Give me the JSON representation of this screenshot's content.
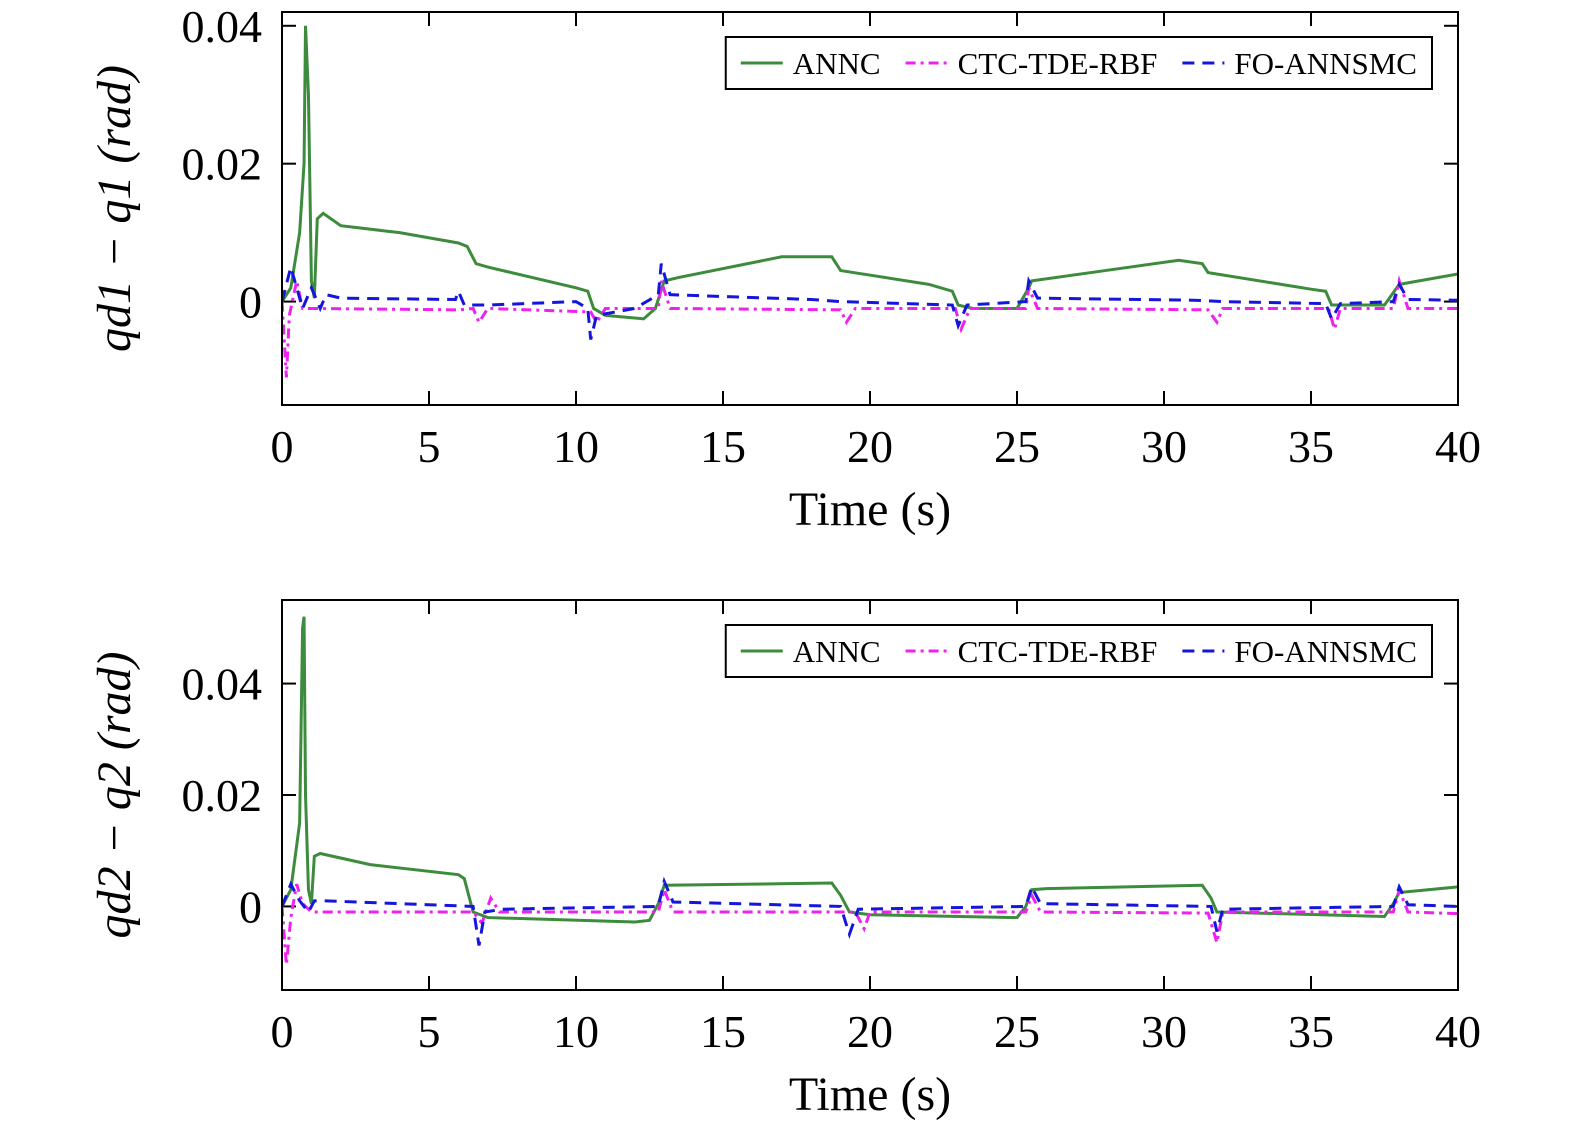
{
  "chart_data": [
    {
      "type": "line",
      "xlabel": "Time (s)",
      "ylabel": "qd1 − q1 (rad)",
      "xlim": [
        0,
        40
      ],
      "xticks": [
        0,
        5,
        10,
        15,
        20,
        25,
        30,
        35,
        40
      ],
      "ylim": [
        -0.015,
        0.042
      ],
      "yticks": [
        0,
        0.02,
        0.04
      ],
      "legend": "upper right",
      "series": [
        {
          "name": "ANNC",
          "color": "#3d8b3d",
          "dash": "solid",
          "x": [
            0,
            0.3,
            0.6,
            0.75,
            0.8,
            0.9,
            1.0,
            1.1,
            1.2,
            1.4,
            2,
            4,
            6,
            6.3,
            6.6,
            7,
            10,
            10.4,
            10.6,
            11,
            12.3,
            12.7,
            13,
            13.5,
            17,
            18.7,
            19,
            22,
            22.8,
            23,
            23.5,
            25,
            25.4,
            25.5,
            28,
            30.5,
            31.3,
            31.5,
            35,
            35.5,
            35.7,
            37.5,
            38,
            40
          ],
          "values": [
            0,
            0.002,
            0.01,
            0.02,
            0.04,
            0.03,
            0.003,
            0.0005,
            0.012,
            0.0128,
            0.011,
            0.01,
            0.0085,
            0.008,
            0.0055,
            0.005,
            0.002,
            0.0015,
            -0.001,
            -0.002,
            -0.0025,
            -0.001,
            0.003,
            0.0035,
            0.0065,
            0.0065,
            0.0045,
            0.0025,
            0.0015,
            -0.0005,
            -0.001,
            -0.001,
            0.002,
            0.003,
            0.0045,
            0.006,
            0.0055,
            0.0042,
            0.0018,
            0.0015,
            -0.0005,
            -0.0005,
            0.0025,
            0.004
          ]
        },
        {
          "name": "CTC-TDE-RBF",
          "color": "#ee22ee",
          "dash": "dashdot",
          "x": [
            0,
            0.15,
            0.25,
            0.5,
            0.7,
            1,
            6,
            6.5,
            6.7,
            7,
            10.5,
            10.7,
            11,
            12.8,
            12.9,
            13.2,
            19,
            19.2,
            19.5,
            22.9,
            23.1,
            23.4,
            25.3,
            25.4,
            25.7,
            31.5,
            31.8,
            32,
            35.6,
            35.8,
            36,
            37.8,
            38,
            38.3,
            40
          ],
          "values": [
            0,
            -0.011,
            -0.002,
            0.003,
            -0.001,
            -0.001,
            -0.0012,
            -0.001,
            -0.003,
            -0.001,
            -0.0015,
            -0.003,
            -0.001,
            -0.001,
            0.003,
            -0.001,
            -0.0012,
            -0.003,
            -0.001,
            -0.001,
            -0.004,
            -0.001,
            -0.001,
            0.002,
            -0.001,
            -0.0012,
            -0.003,
            -0.001,
            -0.001,
            -0.004,
            -0.001,
            -0.001,
            0.003,
            -0.001,
            -0.001
          ]
        },
        {
          "name": "FO-ANNSMC",
          "color": "#1515dd",
          "dash": "dashed",
          "x": [
            0,
            0.3,
            0.5,
            0.7,
            1,
            1.3,
            1.5,
            2,
            5.9,
            6,
            6.2,
            7,
            10,
            10.4,
            10.5,
            10.7,
            12,
            12.8,
            12.9,
            13.2,
            18,
            19,
            22.8,
            23,
            23.3,
            25.3,
            25.4,
            25.7,
            31,
            32,
            35.5,
            35.7,
            36,
            37.8,
            38,
            38.3,
            40
          ],
          "values": [
            0,
            0.005,
            0.002,
            -0.001,
            0.002,
            -0.001,
            0.001,
            0.0005,
            0.0003,
            0.0015,
            -0.0005,
            -0.0005,
            0,
            -0.001,
            -0.0055,
            -0.002,
            -0.001,
            0.001,
            0.0055,
            0.001,
            0.0003,
            0,
            -0.0005,
            -0.0035,
            -0.0005,
            0,
            0.003,
            0.0005,
            0.0002,
            0,
            -0.0003,
            -0.0025,
            -0.0003,
            0,
            0.0025,
            0.0003,
            0.0002
          ]
        }
      ]
    },
    {
      "type": "line",
      "xlabel": "Time (s)",
      "ylabel": "qd2 − q2 (rad)",
      "xlim": [
        0,
        40
      ],
      "xticks": [
        0,
        5,
        10,
        15,
        20,
        25,
        30,
        35,
        40
      ],
      "ylim": [
        -0.015,
        0.055
      ],
      "yticks": [
        0,
        0.02,
        0.04
      ],
      "legend": "upper right",
      "series": [
        {
          "name": "ANNC",
          "color": "#3d8b3d",
          "dash": "solid",
          "x": [
            0,
            0.3,
            0.6,
            0.7,
            0.75,
            0.8,
            0.9,
            1.0,
            1.1,
            1.3,
            3,
            6,
            6.2,
            6.5,
            7,
            12,
            12.5,
            12.8,
            13,
            18.7,
            19,
            19.3,
            20,
            25,
            25.3,
            25.5,
            26,
            31.3,
            31.6,
            31.8,
            37.5,
            37.8,
            38,
            40
          ],
          "values": [
            0,
            0.003,
            0.015,
            0.05,
            0.052,
            0.02,
            0.003,
            0.0005,
            0.009,
            0.0095,
            0.0075,
            0.0057,
            0.005,
            -0.001,
            -0.002,
            -0.0028,
            -0.0025,
            0.0005,
            0.0038,
            0.0042,
            0.002,
            -0.001,
            -0.0015,
            -0.002,
            0,
            0.003,
            0.0032,
            0.0038,
            0.0015,
            -0.001,
            -0.0018,
            0.0005,
            0.0025,
            0.0035
          ]
        },
        {
          "name": "CTC-TDE-RBF",
          "color": "#ee22ee",
          "dash": "dashdot",
          "x": [
            0,
            0.15,
            0.3,
            0.5,
            0.7,
            1,
            6.5,
            6.8,
            7.1,
            7.4,
            12.8,
            13,
            13.3,
            19.5,
            19.8,
            20,
            25.3,
            25.5,
            25.8,
            31.5,
            31.8,
            32,
            37.8,
            38,
            38.3,
            40
          ],
          "values": [
            0,
            -0.0105,
            -0.002,
            0.004,
            0.0005,
            -0.001,
            -0.001,
            -0.003,
            0.0015,
            -0.001,
            -0.001,
            0.003,
            -0.001,
            -0.001,
            -0.004,
            -0.001,
            -0.001,
            0.002,
            -0.001,
            -0.0012,
            -0.0065,
            -0.001,
            -0.001,
            0.003,
            -0.001,
            -0.0013
          ]
        },
        {
          "name": "FO-ANNSMC",
          "color": "#1515dd",
          "dash": "dashed",
          "x": [
            0,
            0.3,
            0.6,
            0.9,
            1.1,
            1.5,
            6.5,
            6.7,
            6.9,
            7.5,
            12.8,
            13,
            13.3,
            19,
            19.3,
            19.6,
            25.3,
            25.5,
            25.8,
            31.6,
            31.8,
            32,
            37.8,
            38,
            38.3,
            40
          ],
          "values": [
            0,
            0.004,
            0.001,
            -0.001,
            0.001,
            0.001,
            0,
            -0.007,
            -0.001,
            -0.0005,
            0,
            0.0045,
            0.0008,
            0,
            -0.005,
            -0.0005,
            0,
            0.0035,
            0.0005,
            0,
            -0.0045,
            -0.0005,
            0,
            0.0035,
            0.0003,
            0
          ]
        }
      ]
    }
  ]
}
